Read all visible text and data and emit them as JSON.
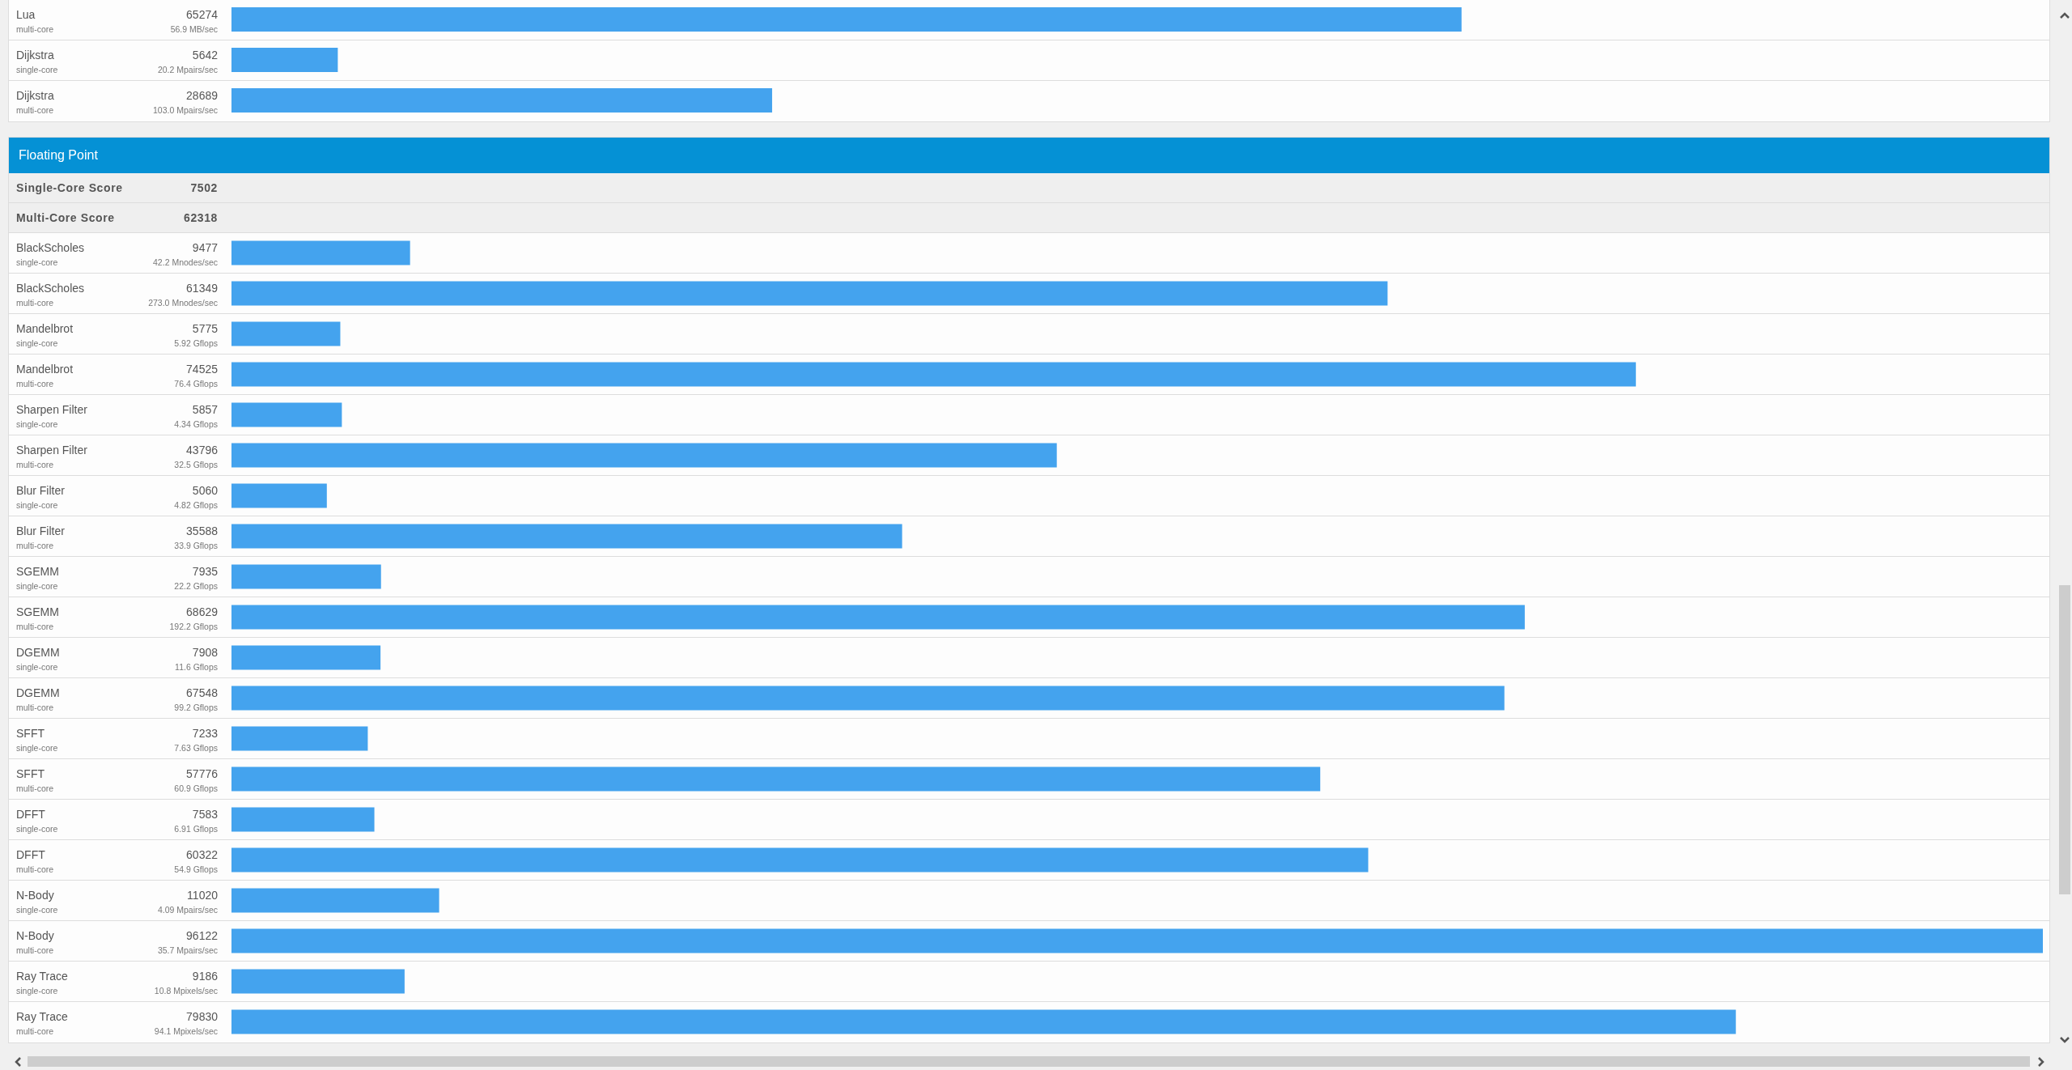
{
  "chart_data": [
    {
      "type": "bar",
      "orientation": "horizontal",
      "color": "#44a3ee",
      "categories": [
        "Lua\nmulti-core",
        "Dijkstra\nsingle-core",
        "Dijkstra\nmulti-core"
      ],
      "values": [
        65274,
        5642,
        28689
      ],
      "value_labels": [
        "65274",
        "5642",
        "28689"
      ],
      "annotations": [
        "56.9 MB/sec",
        "20.2 Mpairs/sec",
        "103.0 Mpairs/sec"
      ]
    },
    {
      "type": "bar",
      "orientation": "horizontal",
      "title": "Floating Point",
      "color": "#44a3ee",
      "categories": [
        "Single-Core Score",
        "Multi-Core Score",
        "BlackScholes\nsingle-core",
        "BlackScholes\nmulti-core",
        "Mandelbrot\nsingle-core",
        "Mandelbrot\nmulti-core",
        "Sharpen Filter\nsingle-core",
        "Sharpen Filter\nmulti-core",
        "Blur Filter\nsingle-core",
        "Blur Filter\nmulti-core",
        "SGEMM\nsingle-core",
        "SGEMM\nmulti-core",
        "DGEMM\nsingle-core",
        "DGEMM\nmulti-core",
        "SFFT\nsingle-core",
        "SFFT\nmulti-core",
        "DFFT\nsingle-core",
        "DFFT\nmulti-core",
        "N-Body\nsingle-core",
        "N-Body\nmulti-core",
        "Ray Trace\nsingle-core",
        "Ray Trace\nmulti-core"
      ],
      "values": [
        null,
        null,
        9477,
        61349,
        5775,
        74525,
        5857,
        43796,
        5060,
        35588,
        7935,
        68629,
        7908,
        67548,
        7233,
        57776,
        7583,
        60322,
        11020,
        96122,
        9186,
        79830
      ],
      "value_labels": [
        "7502",
        "62318",
        "9477",
        "61349",
        "5775",
        "74525",
        "5857",
        "43796",
        "5060",
        "35588",
        "7935",
        "68629",
        "7908",
        "67548",
        "7233",
        "57776",
        "7583",
        "60322",
        "11020",
        "96122",
        "9186",
        "79830"
      ],
      "annotations": [
        "42.2 Mnodes/sec",
        "273.0 Mnodes/sec",
        "5.92 Gflops",
        "76.4 Gflops",
        "4.34 Gflops",
        "32.5 Gflops",
        "4.82 Gflops",
        "33.9 Gflops",
        "22.2 Gflops",
        "192.2 Gflops",
        "11.6 Gflops",
        "99.2 Gflops",
        "7.63 Gflops",
        "60.9 Gflops",
        "6.91 Gflops",
        "54.9 Gflops",
        "4.09 Mpairs/sec",
        "35.7 Mpairs/sec",
        "10.8 Mpixels/sec",
        "94.1 Mpixels/sec"
      ]
    }
  ]
}
